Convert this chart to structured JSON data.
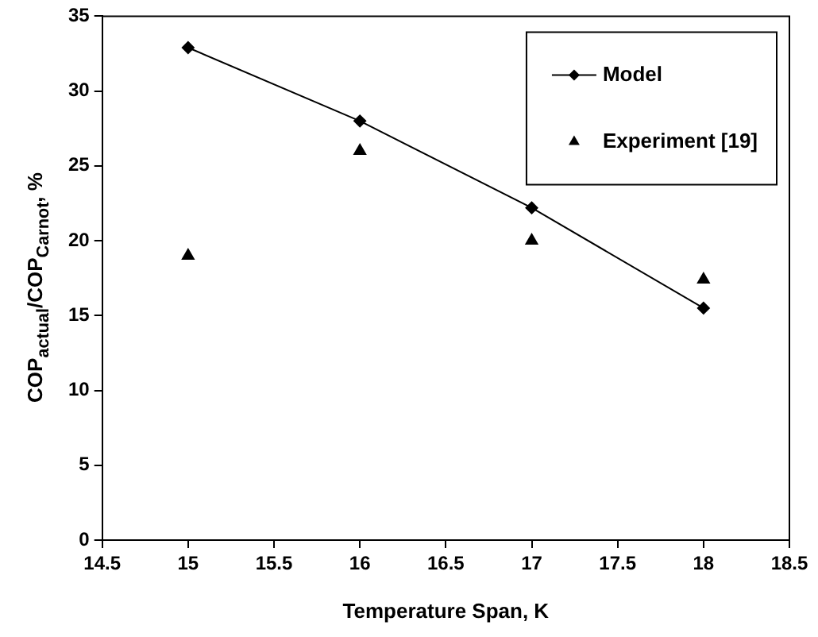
{
  "chart_data": {
    "type": "line",
    "xlabel": "Temperature Span, K",
    "ylabel": "COP$_{actual}$/COP$_{Carnot}$, %",
    "xlim": [
      14.5,
      18.5
    ],
    "xticks": [
      14.5,
      15,
      15.5,
      16,
      16.5,
      17,
      17.5,
      18,
      18.5
    ],
    "ylim": [
      0,
      35
    ],
    "yticks": [
      0,
      5,
      10,
      15,
      20,
      25,
      30,
      35
    ],
    "grid": false,
    "legend": "top right",
    "series": [
      {
        "name": "Model",
        "type": "line",
        "color": "#000000",
        "marker": "diamond",
        "x": [
          15,
          16,
          17,
          18
        ],
        "values": [
          32.9,
          28.0,
          22.2,
          15.5
        ]
      },
      {
        "name": "Experiment [19]",
        "type": "scatter",
        "color": "#000000",
        "marker": "triangle",
        "x": [
          15,
          16,
          17,
          18
        ],
        "values": [
          19.0,
          26.0,
          20.0,
          17.4
        ]
      }
    ]
  }
}
